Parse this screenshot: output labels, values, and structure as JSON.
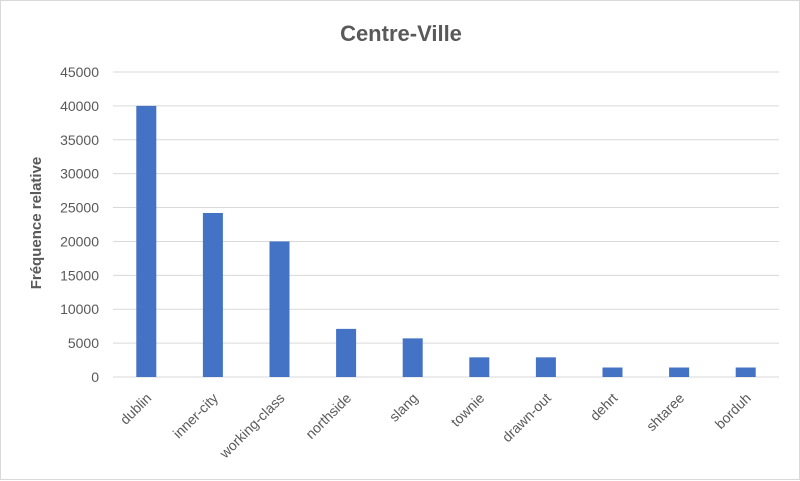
{
  "chart_data": {
    "type": "bar",
    "title": "Centre-Ville",
    "xlabel": "",
    "ylabel": "Fréquence relative",
    "categories": [
      "dublin",
      "inner-city",
      "working-class",
      "northside",
      "slang",
      "townie",
      "drawn-out",
      "dehrt",
      "shtaree",
      "borduh"
    ],
    "values": [
      40000,
      24200,
      20000,
      7100,
      5700,
      2900,
      2900,
      1400,
      1400,
      1400
    ],
    "ylim": [
      0,
      45000
    ],
    "yticks": [
      "0",
      "5000",
      "10000",
      "15000",
      "20000",
      "25000",
      "30000",
      "35000",
      "40000",
      "45000"
    ],
    "grid": true,
    "legend": "none",
    "bar_color": "#4472C4",
    "grid_color": "#d9d9d9"
  }
}
